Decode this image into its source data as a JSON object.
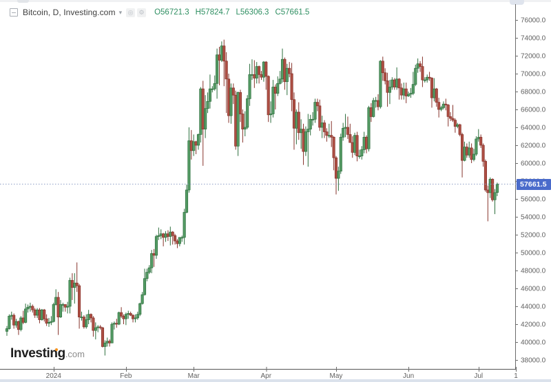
{
  "header": {
    "title": "Bitcoin, D, Investing.com",
    "ohlc": {
      "o": "O56721.3",
      "h": "H57824.7",
      "l": "L56306.3",
      "c": "C57661.5"
    },
    "ohlc_color": "#2f8f62"
  },
  "price_line": {
    "value": 57661.5,
    "label": "57661.5",
    "tag_color": "#4a6bcb",
    "dotted_color": "#8d9cc4"
  },
  "y_axis": {
    "labels": [
      "76000.0",
      "74000.0",
      "72000.0",
      "70000.0",
      "68000.0",
      "66000.0",
      "64000.0",
      "62000.0",
      "60000.0",
      "58000.0",
      "56000.0",
      "54000.0",
      "52000.0",
      "50000.0",
      "48000.0",
      "46000.0",
      "44000.0",
      "42000.0",
      "40000.0",
      "38000.0"
    ],
    "max": 76000,
    "step": 2000,
    "text_color": "#5f5f5f"
  },
  "x_axis": {
    "labels": [
      {
        "text": "2024",
        "day": 20
      },
      {
        "text": "Feb",
        "day": 51
      },
      {
        "text": "Mar",
        "day": 80
      },
      {
        "text": "Apr",
        "day": 111
      },
      {
        "text": "May",
        "day": 141
      },
      {
        "text": "Jun",
        "day": 172
      },
      {
        "text": "Jul",
        "day": 202
      },
      {
        "text": "1",
        "day": 218
      }
    ],
    "text_color": "#5f5f5f"
  },
  "watermark": {
    "brand": "Investing",
    "suffix": ".com",
    "dot_color": "#f6921e"
  },
  "chart_data": {
    "type": "candlestick",
    "symbol": "Bitcoin",
    "interval": "D",
    "source": "Investing.com",
    "title": "Bitcoin, D, Investing.com",
    "unit": "USD, values stored in thousands (multiply by 1000)",
    "start_date": "2023-12-12",
    "frequency": "daily",
    "ylim": [
      37000,
      78230
    ],
    "grid": false,
    "up_fill": "#549b64",
    "up_stroke": "#2c6e3c",
    "down_fill": "#ae4f44",
    "down_stroke": "#86332b",
    "last_price": 57661.5,
    "candles": [
      [
        41.2,
        41.8,
        40.7,
        41.5
      ],
      [
        41.5,
        43.1,
        41.4,
        42.9
      ],
      [
        42.9,
        43.4,
        42.5,
        43.0
      ],
      [
        43.0,
        43.2,
        41.5,
        41.9
      ],
      [
        41.9,
        42.6,
        41.6,
        42.3
      ],
      [
        42.3,
        42.4,
        40.8,
        41.4
      ],
      [
        41.4,
        42.9,
        41.2,
        42.7
      ],
      [
        42.7,
        43.5,
        42.0,
        42.2
      ],
      [
        42.2,
        44.3,
        42.1,
        43.7
      ],
      [
        43.7,
        44.2,
        43.3,
        43.9
      ],
      [
        43.9,
        44.4,
        43.4,
        44.0
      ],
      [
        44.0,
        44.2,
        43.3,
        43.6
      ],
      [
        43.6,
        43.8,
        42.7,
        43.0
      ],
      [
        43.0,
        43.8,
        42.7,
        43.6
      ],
      [
        43.6,
        43.8,
        42.1,
        42.5
      ],
      [
        42.5,
        43.7,
        42.4,
        43.6
      ],
      [
        43.6,
        43.7,
        42.3,
        42.6
      ],
      [
        42.6,
        43.1,
        41.8,
        42.1
      ],
      [
        42.1,
        42.7,
        41.7,
        42.2
      ],
      [
        42.2,
        42.9,
        41.9,
        42.3
      ],
      [
        42.3,
        44.4,
        42.2,
        44.2
      ],
      [
        44.2,
        45.9,
        44.1,
        45.0
      ],
      [
        45.0,
        45.6,
        40.8,
        42.8
      ],
      [
        42.8,
        44.7,
        42.7,
        44.2
      ],
      [
        44.2,
        44.4,
        43.4,
        44.2
      ],
      [
        44.2,
        44.2,
        43.4,
        43.9
      ],
      [
        43.9,
        44.5,
        43.2,
        44.0
      ],
      [
        44.0,
        47.2,
        43.2,
        46.9
      ],
      [
        46.9,
        47.7,
        44.7,
        46.1
      ],
      [
        46.1,
        47.7,
        44.3,
        46.6
      ],
      [
        46.6,
        48.9,
        45.6,
        46.3
      ],
      [
        46.3,
        46.5,
        41.5,
        42.8
      ],
      [
        42.8,
        43.4,
        42.4,
        42.8
      ],
      [
        42.8,
        43.0,
        41.5,
        41.7
      ],
      [
        41.7,
        43.1,
        41.5,
        42.5
      ],
      [
        42.5,
        43.6,
        42.0,
        43.1
      ],
      [
        43.1,
        43.2,
        42.2,
        42.7
      ],
      [
        42.7,
        42.9,
        40.6,
        41.3
      ],
      [
        41.3,
        42.2,
        40.3,
        41.6
      ],
      [
        41.6,
        41.9,
        41.1,
        41.7
      ],
      [
        41.7,
        41.9,
        41.4,
        41.6
      ],
      [
        41.6,
        41.7,
        39.4,
        39.5
      ],
      [
        39.5,
        40.2,
        38.5,
        39.9
      ],
      [
        39.9,
        40.5,
        39.5,
        40.1
      ],
      [
        40.1,
        40.3,
        39.5,
        39.9
      ],
      [
        39.9,
        42.2,
        39.9,
        42.0
      ],
      [
        42.0,
        42.3,
        41.4,
        42.1
      ],
      [
        42.1,
        42.6,
        41.6,
        42.0
      ],
      [
        42.0,
        43.4,
        41.9,
        43.3
      ],
      [
        43.3,
        43.9,
        42.7,
        42.9
      ],
      [
        42.9,
        43.1,
        42.0,
        42.6
      ],
      [
        42.6,
        43.3,
        41.9,
        43.1
      ],
      [
        43.1,
        43.5,
        42.6,
        43.2
      ],
      [
        43.2,
        43.4,
        42.9,
        43.0
      ],
      [
        43.0,
        43.1,
        42.2,
        42.6
      ],
      [
        42.6,
        43.1,
        42.2,
        42.7
      ],
      [
        42.7,
        43.4,
        42.5,
        43.1
      ],
      [
        43.1,
        44.4,
        42.9,
        44.3
      ],
      [
        44.3,
        45.6,
        44.2,
        45.3
      ],
      [
        45.3,
        48.2,
        45.2,
        47.1
      ],
      [
        47.1,
        48.2,
        46.8,
        47.8
      ],
      [
        47.8,
        48.6,
        47.6,
        48.3
      ],
      [
        48.3,
        50.3,
        47.7,
        49.9
      ],
      [
        49.9,
        50.4,
        48.4,
        49.7
      ],
      [
        49.7,
        52.0,
        49.3,
        51.8
      ],
      [
        51.8,
        52.8,
        51.4,
        51.9
      ],
      [
        51.9,
        52.6,
        51.5,
        52.1
      ],
      [
        52.1,
        52.2,
        50.7,
        51.7
      ],
      [
        51.7,
        52.4,
        51.2,
        52.1
      ],
      [
        52.1,
        52.5,
        51.3,
        51.8
      ],
      [
        51.8,
        52.9,
        50.8,
        52.3
      ],
      [
        52.3,
        52.4,
        50.9,
        51.9
      ],
      [
        51.9,
        52.1,
        50.9,
        51.3
      ],
      [
        51.3,
        51.5,
        50.5,
        51.0
      ],
      [
        51.0,
        51.7,
        50.7,
        51.7
      ],
      [
        51.7,
        51.9,
        51.2,
        51.7
      ],
      [
        51.7,
        54.9,
        50.9,
        54.5
      ],
      [
        54.5,
        57.6,
        54.4,
        57.0
      ],
      [
        57.0,
        64.0,
        56.7,
        62.5
      ],
      [
        62.5,
        63.7,
        60.4,
        61.4
      ],
      [
        61.4,
        63.2,
        60.8,
        62.4
      ],
      [
        62.4,
        62.5,
        61.0,
        62.0
      ],
      [
        62.0,
        63.3,
        61.5,
        63.2
      ],
      [
        63.2,
        68.5,
        62.3,
        68.3
      ],
      [
        68.3,
        69.2,
        59.7,
        63.8
      ],
      [
        63.8,
        67.6,
        62.8,
        66.1
      ],
      [
        66.1,
        67.9,
        65.6,
        66.9
      ],
      [
        66.9,
        69.9,
        66.1,
        68.3
      ],
      [
        68.3,
        68.6,
        67.9,
        68.3
      ],
      [
        68.3,
        69.8,
        68.1,
        68.9
      ],
      [
        68.9,
        72.8,
        67.2,
        72.1
      ],
      [
        72.1,
        73.0,
        68.7,
        71.5
      ],
      [
        71.5,
        73.6,
        71.3,
        73.1
      ],
      [
        73.1,
        73.8,
        68.6,
        71.4
      ],
      [
        71.4,
        72.4,
        65.6,
        69.4
      ],
      [
        69.4,
        70.0,
        64.5,
        65.3
      ],
      [
        65.3,
        68.9,
        64.4,
        68.4
      ],
      [
        68.4,
        68.9,
        66.6,
        67.6
      ],
      [
        67.6,
        68.1,
        61.5,
        61.9
      ],
      [
        61.9,
        68.0,
        60.8,
        67.9
      ],
      [
        67.9,
        68.2,
        64.6,
        65.5
      ],
      [
        65.5,
        66.0,
        62.3,
        63.8
      ],
      [
        63.8,
        65.8,
        63.0,
        64.0
      ],
      [
        64.0,
        67.6,
        63.8,
        67.2
      ],
      [
        67.2,
        71.1,
        66.4,
        69.9
      ],
      [
        69.9,
        71.6,
        69.3,
        69.9
      ],
      [
        69.9,
        71.5,
        68.4,
        69.5
      ],
      [
        69.5,
        71.3,
        68.9,
        70.8
      ],
      [
        70.8,
        70.9,
        68.9,
        69.9
      ],
      [
        69.9,
        70.3,
        69.3,
        69.6
      ],
      [
        69.6,
        71.4,
        69.1,
        71.3
      ],
      [
        71.3,
        71.4,
        68.2,
        69.7
      ],
      [
        69.7,
        69.8,
        64.6,
        65.4
      ],
      [
        65.4,
        66.9,
        64.5,
        65.5
      ],
      [
        65.5,
        69.3,
        65.1,
        68.5
      ],
      [
        68.5,
        68.8,
        66.0,
        67.8
      ],
      [
        67.8,
        69.7,
        67.5,
        68.9
      ],
      [
        68.9,
        70.3,
        68.8,
        69.4
      ],
      [
        69.4,
        72.8,
        69.0,
        71.6
      ],
      [
        71.6,
        71.8,
        68.2,
        69.1
      ],
      [
        69.1,
        71.1,
        67.6,
        70.6
      ],
      [
        70.6,
        71.3,
        69.6,
        70.0
      ],
      [
        70.0,
        71.2,
        65.8,
        67.1
      ],
      [
        67.1,
        67.9,
        61.5,
        63.9
      ],
      [
        63.9,
        66.0,
        62.1,
        65.7
      ],
      [
        65.7,
        66.8,
        62.6,
        63.4
      ],
      [
        63.4,
        64.9,
        61.6,
        63.8
      ],
      [
        63.8,
        64.4,
        59.8,
        61.3
      ],
      [
        61.3,
        64.1,
        60.8,
        63.5
      ],
      [
        63.5,
        65.5,
        59.6,
        63.8
      ],
      [
        63.8,
        65.4,
        63.1,
        64.9
      ],
      [
        64.9,
        65.7,
        64.2,
        64.9
      ],
      [
        64.9,
        67.2,
        64.5,
        66.8
      ],
      [
        66.8,
        67.2,
        65.8,
        66.4
      ],
      [
        66.4,
        67.1,
        63.6,
        64.0
      ],
      [
        64.0,
        65.3,
        62.8,
        64.5
      ],
      [
        64.5,
        64.8,
        62.8,
        63.5
      ],
      [
        63.5,
        63.9,
        62.4,
        63.1
      ],
      [
        63.1,
        64.4,
        62.8,
        63.1
      ],
      [
        63.1,
        64.7,
        61.8,
        62.9
      ],
      [
        62.9,
        63.0,
        59.2,
        60.6
      ],
      [
        60.6,
        60.8,
        56.5,
        58.3
      ],
      [
        58.3,
        59.6,
        56.9,
        59.1
      ],
      [
        59.1,
        63.3,
        58.8,
        62.9
      ],
      [
        62.9,
        64.5,
        62.5,
        63.9
      ],
      [
        63.9,
        65.5,
        62.9,
        64.0
      ],
      [
        64.0,
        65.2,
        62.7,
        63.2
      ],
      [
        63.2,
        64.4,
        62.3,
        62.3
      ],
      [
        62.3,
        63.0,
        60.6,
        61.2
      ],
      [
        61.2,
        63.4,
        60.9,
        63.1
      ],
      [
        63.1,
        63.5,
        60.2,
        60.8
      ],
      [
        60.8,
        61.5,
        60.5,
        60.8
      ],
      [
        60.8,
        61.9,
        60.4,
        61.5
      ],
      [
        61.5,
        63.5,
        61.1,
        62.9
      ],
      [
        62.9,
        63.1,
        61.1,
        61.6
      ],
      [
        61.6,
        66.4,
        61.3,
        66.2
      ],
      [
        66.2,
        66.7,
        64.6,
        65.2
      ],
      [
        65.2,
        67.3,
        65.1,
        67.0
      ],
      [
        67.0,
        67.4,
        66.2,
        67.0
      ],
      [
        67.0,
        67.7,
        65.9,
        66.3
      ],
      [
        66.3,
        71.5,
        66.1,
        71.4
      ],
      [
        71.4,
        71.9,
        69.2,
        70.1
      ],
      [
        70.1,
        70.6,
        68.8,
        69.2
      ],
      [
        69.2,
        70.1,
        66.3,
        67.9
      ],
      [
        67.9,
        69.3,
        66.6,
        68.5
      ],
      [
        68.5,
        69.6,
        68.2,
        69.3
      ],
      [
        69.3,
        69.5,
        68.2,
        68.5
      ],
      [
        68.5,
        70.7,
        68.2,
        69.4
      ],
      [
        69.4,
        69.5,
        67.1,
        68.4
      ],
      [
        68.4,
        68.9,
        67.1,
        67.6
      ],
      [
        67.6,
        69.0,
        67.1,
        68.3
      ],
      [
        68.3,
        69.0,
        66.7,
        67.5
      ],
      [
        67.5,
        68.0,
        67.4,
        67.7
      ],
      [
        67.7,
        68.4,
        67.3,
        67.8
      ],
      [
        67.8,
        70.2,
        67.6,
        68.8
      ],
      [
        68.8,
        71.0,
        68.6,
        70.6
      ],
      [
        70.6,
        71.7,
        70.1,
        71.1
      ],
      [
        71.1,
        71.4,
        70.2,
        70.8
      ],
      [
        70.8,
        71.9,
        68.5,
        69.3
      ],
      [
        69.3,
        69.6,
        69.0,
        69.3
      ],
      [
        69.3,
        69.9,
        69.0,
        69.6
      ],
      [
        69.6,
        70.2,
        69.2,
        69.5
      ],
      [
        69.5,
        69.6,
        66.2,
        67.3
      ],
      [
        67.3,
        69.5,
        66.9,
        68.3
      ],
      [
        68.3,
        68.4,
        66.3,
        66.8
      ],
      [
        66.8,
        67.3,
        65.1,
        66.0
      ],
      [
        66.0,
        66.4,
        65.8,
        66.2
      ],
      [
        66.2,
        66.9,
        66.0,
        66.6
      ],
      [
        66.6,
        67.2,
        65.9,
        66.5
      ],
      [
        66.5,
        66.6,
        64.1,
        65.2
      ],
      [
        65.2,
        65.7,
        64.7,
        65.0
      ],
      [
        65.0,
        66.5,
        64.6,
        64.8
      ],
      [
        64.8,
        65.0,
        63.4,
        64.1
      ],
      [
        64.1,
        64.5,
        63.9,
        64.3
      ],
      [
        64.3,
        64.4,
        63.0,
        63.2
      ],
      [
        63.2,
        63.4,
        58.4,
        60.3
      ],
      [
        60.3,
        62.4,
        60.2,
        61.8
      ],
      [
        61.8,
        62.2,
        60.6,
        60.9
      ],
      [
        60.9,
        62.4,
        60.6,
        61.7
      ],
      [
        61.7,
        62.2,
        60.0,
        60.4
      ],
      [
        60.4,
        61.6,
        60.2,
        61.0
      ],
      [
        61.0,
        63.0,
        60.8,
        62.7
      ],
      [
        62.7,
        63.8,
        62.4,
        62.9
      ],
      [
        62.9,
        63.2,
        61.7,
        62.0
      ],
      [
        62.0,
        62.2,
        59.6,
        60.2
      ],
      [
        60.2,
        60.4,
        56.8,
        57.0
      ],
      [
        57.0,
        57.5,
        53.5,
        56.7
      ],
      [
        56.7,
        58.4,
        56.1,
        58.2
      ],
      [
        58.2,
        58.3,
        55.7,
        55.9
      ],
      [
        55.9,
        57.1,
        54.3,
        56.7
      ],
      [
        56.72,
        57.82,
        56.31,
        57.66
      ]
    ]
  }
}
